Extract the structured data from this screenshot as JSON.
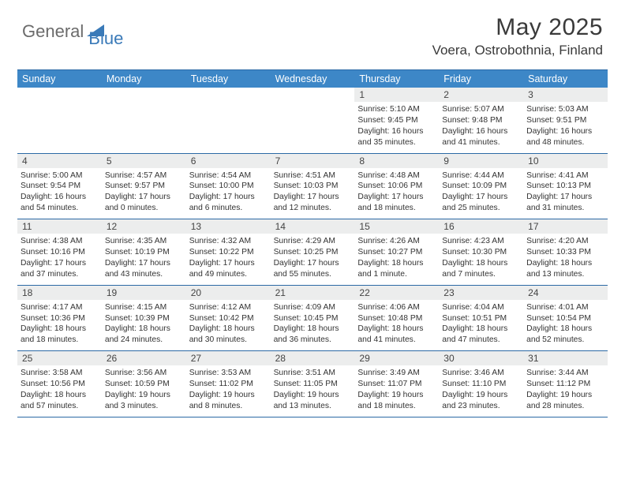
{
  "logo": {
    "text_main": "General",
    "text_accent": "Blue"
  },
  "title": {
    "month_year": "May 2025",
    "location": "Voera, Ostrobothnia, Finland"
  },
  "colors": {
    "header_bg": "#3d87c7",
    "header_text": "#ffffff",
    "border": "#2c6aa5",
    "daynum_bg": "#eceded",
    "text": "#333333",
    "logo_main": "#6b6b6b",
    "logo_accent": "#3a7ab8"
  },
  "day_names": [
    "Sunday",
    "Monday",
    "Tuesday",
    "Wednesday",
    "Thursday",
    "Friday",
    "Saturday"
  ],
  "weeks": [
    [
      {
        "empty": true
      },
      {
        "empty": true
      },
      {
        "empty": true
      },
      {
        "empty": true
      },
      {
        "d": "1",
        "sr": "5:10 AM",
        "ss": "9:45 PM",
        "dl": "16 hours and 35 minutes."
      },
      {
        "d": "2",
        "sr": "5:07 AM",
        "ss": "9:48 PM",
        "dl": "16 hours and 41 minutes."
      },
      {
        "d": "3",
        "sr": "5:03 AM",
        "ss": "9:51 PM",
        "dl": "16 hours and 48 minutes."
      }
    ],
    [
      {
        "d": "4",
        "sr": "5:00 AM",
        "ss": "9:54 PM",
        "dl": "16 hours and 54 minutes."
      },
      {
        "d": "5",
        "sr": "4:57 AM",
        "ss": "9:57 PM",
        "dl": "17 hours and 0 minutes."
      },
      {
        "d": "6",
        "sr": "4:54 AM",
        "ss": "10:00 PM",
        "dl": "17 hours and 6 minutes."
      },
      {
        "d": "7",
        "sr": "4:51 AM",
        "ss": "10:03 PM",
        "dl": "17 hours and 12 minutes."
      },
      {
        "d": "8",
        "sr": "4:48 AM",
        "ss": "10:06 PM",
        "dl": "17 hours and 18 minutes."
      },
      {
        "d": "9",
        "sr": "4:44 AM",
        "ss": "10:09 PM",
        "dl": "17 hours and 25 minutes."
      },
      {
        "d": "10",
        "sr": "4:41 AM",
        "ss": "10:13 PM",
        "dl": "17 hours and 31 minutes."
      }
    ],
    [
      {
        "d": "11",
        "sr": "4:38 AM",
        "ss": "10:16 PM",
        "dl": "17 hours and 37 minutes."
      },
      {
        "d": "12",
        "sr": "4:35 AM",
        "ss": "10:19 PM",
        "dl": "17 hours and 43 minutes."
      },
      {
        "d": "13",
        "sr": "4:32 AM",
        "ss": "10:22 PM",
        "dl": "17 hours and 49 minutes."
      },
      {
        "d": "14",
        "sr": "4:29 AM",
        "ss": "10:25 PM",
        "dl": "17 hours and 55 minutes."
      },
      {
        "d": "15",
        "sr": "4:26 AM",
        "ss": "10:27 PM",
        "dl": "18 hours and 1 minute."
      },
      {
        "d": "16",
        "sr": "4:23 AM",
        "ss": "10:30 PM",
        "dl": "18 hours and 7 minutes."
      },
      {
        "d": "17",
        "sr": "4:20 AM",
        "ss": "10:33 PM",
        "dl": "18 hours and 13 minutes."
      }
    ],
    [
      {
        "d": "18",
        "sr": "4:17 AM",
        "ss": "10:36 PM",
        "dl": "18 hours and 18 minutes."
      },
      {
        "d": "19",
        "sr": "4:15 AM",
        "ss": "10:39 PM",
        "dl": "18 hours and 24 minutes."
      },
      {
        "d": "20",
        "sr": "4:12 AM",
        "ss": "10:42 PM",
        "dl": "18 hours and 30 minutes."
      },
      {
        "d": "21",
        "sr": "4:09 AM",
        "ss": "10:45 PM",
        "dl": "18 hours and 36 minutes."
      },
      {
        "d": "22",
        "sr": "4:06 AM",
        "ss": "10:48 PM",
        "dl": "18 hours and 41 minutes."
      },
      {
        "d": "23",
        "sr": "4:04 AM",
        "ss": "10:51 PM",
        "dl": "18 hours and 47 minutes."
      },
      {
        "d": "24",
        "sr": "4:01 AM",
        "ss": "10:54 PM",
        "dl": "18 hours and 52 minutes."
      }
    ],
    [
      {
        "d": "25",
        "sr": "3:58 AM",
        "ss": "10:56 PM",
        "dl": "18 hours and 57 minutes."
      },
      {
        "d": "26",
        "sr": "3:56 AM",
        "ss": "10:59 PM",
        "dl": "19 hours and 3 minutes."
      },
      {
        "d": "27",
        "sr": "3:53 AM",
        "ss": "11:02 PM",
        "dl": "19 hours and 8 minutes."
      },
      {
        "d": "28",
        "sr": "3:51 AM",
        "ss": "11:05 PM",
        "dl": "19 hours and 13 minutes."
      },
      {
        "d": "29",
        "sr": "3:49 AM",
        "ss": "11:07 PM",
        "dl": "19 hours and 18 minutes."
      },
      {
        "d": "30",
        "sr": "3:46 AM",
        "ss": "11:10 PM",
        "dl": "19 hours and 23 minutes."
      },
      {
        "d": "31",
        "sr": "3:44 AM",
        "ss": "11:12 PM",
        "dl": "19 hours and 28 minutes."
      }
    ]
  ],
  "labels": {
    "sunrise": "Sunrise: ",
    "sunset": "Sunset: ",
    "daylight": "Daylight: "
  }
}
